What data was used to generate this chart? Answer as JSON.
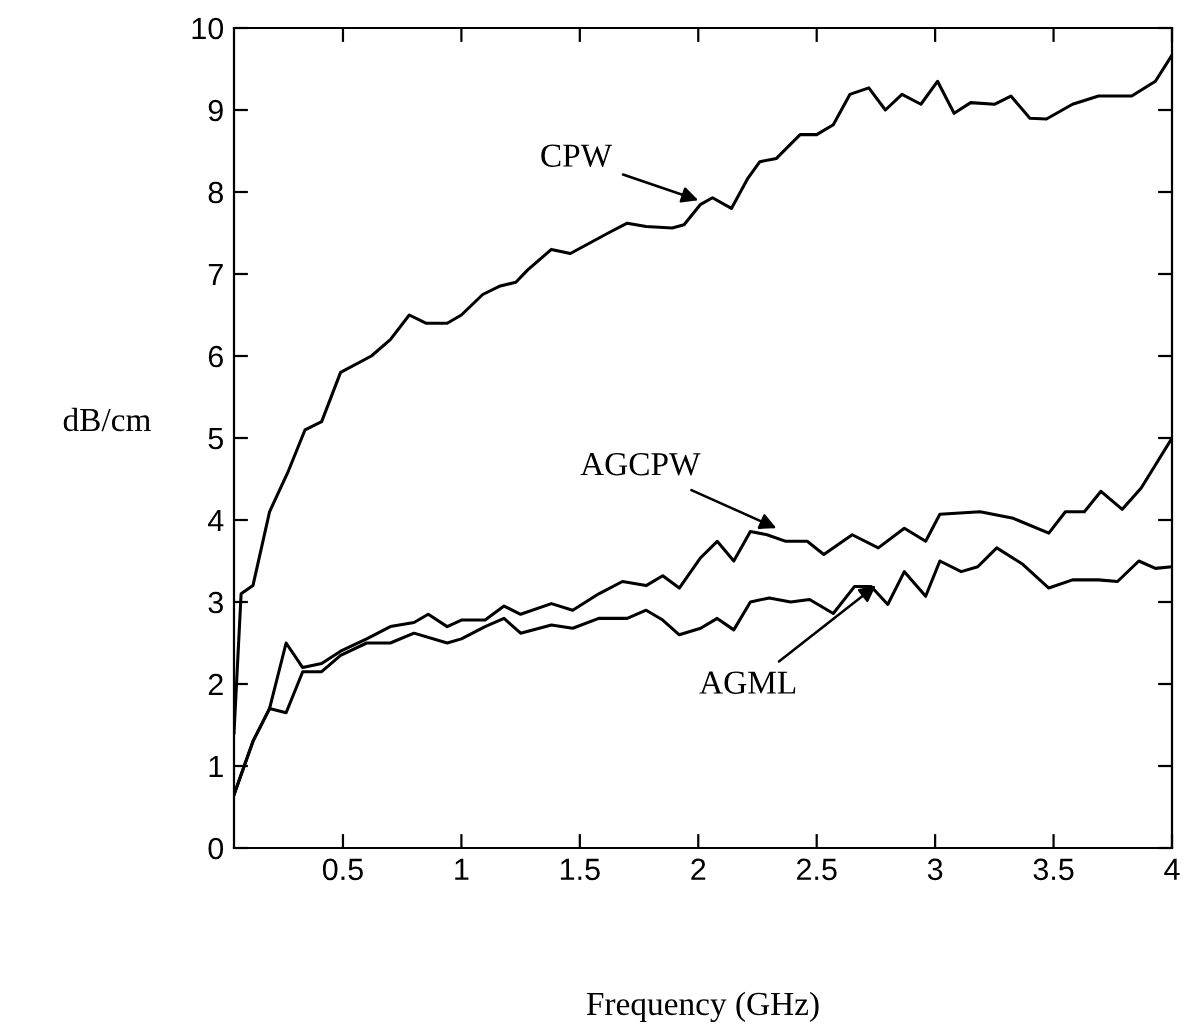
{
  "chart_data": {
    "type": "line",
    "xlabel": "Frequency (GHz)",
    "ylabel": "dB/cm",
    "xlim": [
      0.04,
      4
    ],
    "ylim": [
      0,
      10
    ],
    "xticks": [
      0.5,
      1,
      1.5,
      2,
      2.5,
      3,
      3.5,
      4
    ],
    "yticks": [
      0,
      1,
      2,
      3,
      4,
      5,
      6,
      7,
      8,
      9,
      10
    ],
    "grid": false,
    "legend": false,
    "marker": "none",
    "line_style": "solid",
    "series": [
      {
        "color": "#000000",
        "x": [
          0.04,
          0.07,
          0.12,
          0.19,
          0.27,
          0.34,
          0.41,
          0.49,
          0.62,
          0.7,
          0.78,
          0.85,
          0.94,
          1.0,
          1.09,
          1.16,
          1.23,
          1.28,
          1.38,
          1.46,
          1.62,
          1.7,
          1.78,
          1.89,
          1.94,
          2.01,
          2.06,
          2.14,
          2.21,
          2.26,
          2.33,
          2.43,
          2.5,
          2.57,
          2.64,
          2.72,
          2.79,
          2.86,
          2.94,
          3.01,
          3.08,
          3.15,
          3.25,
          3.32,
          3.4,
          3.47,
          3.58,
          3.69,
          3.83,
          3.93,
          4.0
        ],
        "values": [
          1.4,
          3.1,
          3.2,
          4.1,
          4.6,
          5.1,
          5.2,
          5.8,
          6.0,
          6.2,
          6.5,
          6.4,
          6.4,
          6.5,
          6.75,
          6.85,
          6.9,
          7.05,
          7.3,
          7.25,
          7.5,
          7.62,
          7.58,
          7.56,
          7.6,
          7.85,
          7.93,
          7.8,
          8.17,
          8.37,
          8.41,
          8.7,
          8.7,
          8.82,
          9.19,
          9.27,
          9.0,
          9.19,
          9.07,
          9.35,
          8.96,
          9.09,
          9.07,
          9.17,
          8.9,
          8.89,
          9.07,
          9.17,
          9.17,
          9.35,
          9.67
        ]
      },
      {
        "color": "#000000",
        "x": [
          0.04,
          0.12,
          0.19,
          0.26,
          0.33,
          0.41,
          0.49,
          0.6,
          0.7,
          0.8,
          0.86,
          0.94,
          1.0,
          1.1,
          1.18,
          1.25,
          1.38,
          1.47,
          1.58,
          1.68,
          1.78,
          1.85,
          1.92,
          2.01,
          2.08,
          2.15,
          2.22,
          2.29,
          2.37,
          2.46,
          2.53,
          2.65,
          2.76,
          2.87,
          2.96,
          3.02,
          3.19,
          3.33,
          3.48,
          3.55,
          3.63,
          3.7,
          3.79,
          3.87,
          4.0
        ],
        "values": [
          0.65,
          1.3,
          1.7,
          2.5,
          2.2,
          2.25,
          2.4,
          2.55,
          2.7,
          2.75,
          2.85,
          2.7,
          2.78,
          2.78,
          2.95,
          2.85,
          2.98,
          2.9,
          3.1,
          3.25,
          3.2,
          3.32,
          3.17,
          3.54,
          3.74,
          3.5,
          3.86,
          3.82,
          3.74,
          3.74,
          3.58,
          3.82,
          3.66,
          3.9,
          3.74,
          4.07,
          4.1,
          4.02,
          3.84,
          4.1,
          4.1,
          4.35,
          4.13,
          4.39,
          5.0
        ]
      },
      {
        "color": "#000000",
        "x": [
          0.04,
          0.12,
          0.19,
          0.26,
          0.33,
          0.41,
          0.49,
          0.6,
          0.7,
          0.8,
          0.94,
          1.0,
          1.1,
          1.18,
          1.25,
          1.38,
          1.47,
          1.58,
          1.7,
          1.78,
          1.85,
          1.92,
          2.01,
          2.08,
          2.15,
          2.22,
          2.3,
          2.39,
          2.47,
          2.57,
          2.66,
          2.73,
          2.8,
          2.87,
          2.96,
          3.02,
          3.11,
          3.18,
          3.26,
          3.37,
          3.48,
          3.58,
          3.69,
          3.77,
          3.86,
          3.93,
          4.0
        ],
        "values": [
          0.65,
          1.3,
          1.7,
          1.65,
          2.15,
          2.15,
          2.35,
          2.5,
          2.5,
          2.62,
          2.5,
          2.55,
          2.7,
          2.8,
          2.62,
          2.72,
          2.68,
          2.8,
          2.8,
          2.9,
          2.78,
          2.6,
          2.68,
          2.8,
          2.66,
          3.0,
          3.05,
          3.0,
          3.03,
          2.86,
          3.19,
          3.19,
          2.97,
          3.37,
          3.07,
          3.5,
          3.37,
          3.43,
          3.66,
          3.46,
          3.17,
          3.27,
          3.27,
          3.25,
          3.5,
          3.41,
          3.43
        ]
      }
    ],
    "annotations": [
      {
        "text": "CPW",
        "x": 2.0,
        "y": 7.9
      },
      {
        "text": "AGCPW",
        "x": 2.33,
        "y": 3.9
      },
      {
        "text": "AGML",
        "x": 2.75,
        "y": 3.2
      }
    ]
  }
}
